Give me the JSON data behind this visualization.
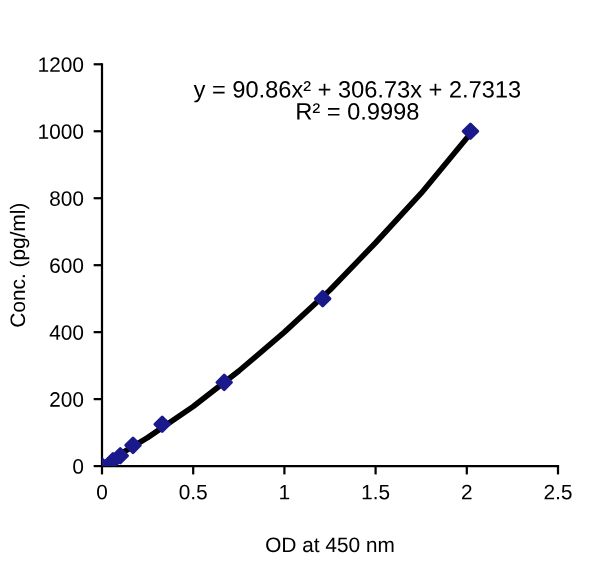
{
  "chart_data": {
    "type": "scatter",
    "xlabel": "OD at 450 nm",
    "ylabel": "Conc. (pg/ml)",
    "annotations": [
      "y = 90.86x² + 306.73x + 2.7313",
      "R² = 0.9998"
    ],
    "xlim": [
      0,
      2.5
    ],
    "xticks": [
      0,
      0.5,
      1,
      1.5,
      2,
      2.5
    ],
    "ylim": [
      0,
      1200
    ],
    "yticks": [
      0,
      200,
      400,
      600,
      800,
      1000,
      1200
    ],
    "grid": false,
    "legend": false,
    "marker": "diamond",
    "series": [
      {
        "type": "line",
        "color": "#000000",
        "marker": "none",
        "line_style": "solid",
        "x": [
          0,
          0.25,
          0.5,
          0.75,
          1.0,
          1.25,
          1.5,
          1.75,
          2.02
        ],
        "values": [
          3,
          85,
          178,
          284,
          400,
          526,
          667,
          815,
          993
        ]
      },
      {
        "color": "#1a1a8c",
        "x": [
          0,
          0.06,
          0.1,
          0.17,
          0.33,
          0.67,
          1.21,
          2.02
        ],
        "values": [
          0,
          16,
          31,
          62,
          125,
          250,
          500,
          1000
        ]
      }
    ]
  }
}
